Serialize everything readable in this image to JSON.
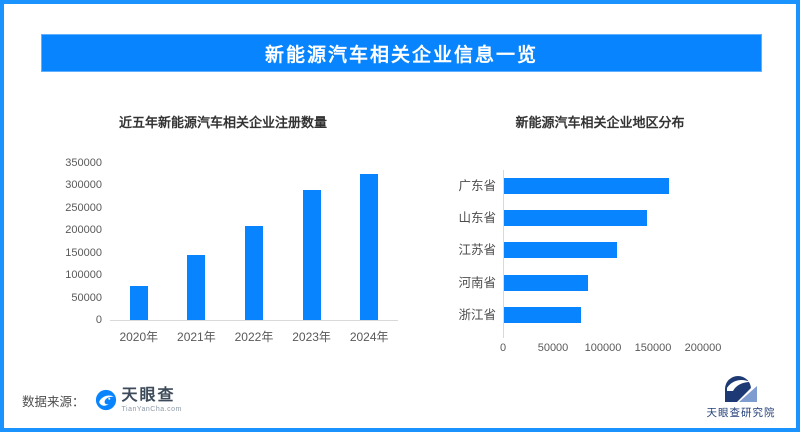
{
  "colors": {
    "accent_blue": "#0885fe",
    "page_border": "#1b93fe",
    "banner_background": "#0885fe",
    "banner_text": "#ffffff",
    "axis_line": "#d9d9d9",
    "chart_title_text": "#333333",
    "tick_text": "#595959"
  },
  "header": {
    "title": "新能源汽车相关企业信息一览"
  },
  "chart_data": [
    {
      "type": "bar",
      "orientation": "vertical",
      "title": "近五年新能源汽车相关企业注册数量",
      "categories": [
        "2020年",
        "2021年",
        "2022年",
        "2023年",
        "2024年"
      ],
      "values": [
        77000,
        146000,
        210000,
        291000,
        325000
      ],
      "xlabel": "",
      "ylabel": "",
      "ylim": [
        0,
        350000
      ],
      "yticks": [
        0,
        50000,
        100000,
        150000,
        200000,
        250000,
        300000,
        350000
      ],
      "bar_color": "#0885fe",
      "grid": false,
      "legend": false
    },
    {
      "type": "bar",
      "orientation": "horizontal",
      "title": "新能源汽车相关企业地区分布",
      "categories": [
        "广东省",
        "山东省",
        "江苏省",
        "河南省",
        "浙江省"
      ],
      "values": [
        165000,
        143000,
        113000,
        84000,
        77000
      ],
      "xlabel": "",
      "ylabel": "",
      "xlim": [
        0,
        200000
      ],
      "xticks": [
        0,
        50000,
        100000,
        150000,
        200000
      ],
      "bar_color": "#0885fe",
      "grid": false,
      "legend": false
    }
  ],
  "footer": {
    "source_label": "数据来源：",
    "source_logo_text": "天眼查",
    "source_logo_subtext": "TianYanCha.com",
    "research_logo_text": "天眼查研究院"
  },
  "icons": {
    "tianyancha-eye-icon": "blue circle with white eagle-eye swoosh",
    "research-institute-icon": "navy emblem with white swoosh and light-blue triangle"
  }
}
